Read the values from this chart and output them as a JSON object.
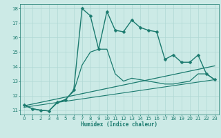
{
  "xlabel": "Humidex (Indice chaleur)",
  "bg_color": "#cceae6",
  "grid_color": "#b0d8d4",
  "line_color": "#1a7a6e",
  "xlim": [
    -0.5,
    23.5
  ],
  "ylim": [
    10.7,
    18.3
  ],
  "yticks": [
    11,
    12,
    13,
    14,
    15,
    16,
    17,
    18
  ],
  "xticks": [
    0,
    1,
    2,
    3,
    4,
    5,
    6,
    7,
    8,
    9,
    10,
    11,
    12,
    13,
    14,
    15,
    16,
    17,
    18,
    19,
    20,
    21,
    22,
    23
  ],
  "series": [
    {
      "x": [
        0,
        1,
        2,
        3,
        4,
        5,
        6,
        7,
        8,
        9,
        10,
        11,
        12,
        13,
        14,
        15,
        16,
        17,
        18,
        19,
        20,
        21,
        22,
        23
      ],
      "y": [
        11.35,
        11.1,
        11.0,
        10.95,
        11.55,
        11.7,
        12.4,
        18.0,
        17.5,
        15.2,
        17.8,
        16.5,
        16.4,
        17.2,
        16.7,
        16.5,
        16.4,
        14.5,
        14.8,
        14.3,
        14.3,
        14.8,
        13.5,
        13.1
      ],
      "marker": "D",
      "markersize": 2.5,
      "linewidth": 1.0
    },
    {
      "x": [
        0,
        1,
        2,
        3,
        4,
        5,
        6,
        7,
        8,
        9,
        10,
        11,
        12,
        13,
        14,
        15,
        16,
        17,
        18,
        19,
        20,
        21,
        22,
        23
      ],
      "y": [
        11.35,
        11.1,
        11.0,
        10.95,
        11.5,
        11.75,
        12.3,
        14.1,
        15.0,
        15.2,
        15.2,
        13.5,
        13.0,
        13.2,
        13.1,
        13.0,
        12.9,
        12.8,
        12.8,
        12.9,
        13.0,
        13.5,
        13.5,
        13.1
      ],
      "marker": null,
      "markersize": 0,
      "linewidth": 0.9
    },
    {
      "x": [
        0,
        23
      ],
      "y": [
        11.3,
        14.05
      ],
      "marker": null,
      "markersize": 0,
      "linewidth": 0.9
    },
    {
      "x": [
        0,
        23
      ],
      "y": [
        11.2,
        13.1
      ],
      "marker": null,
      "markersize": 0,
      "linewidth": 0.8
    }
  ]
}
